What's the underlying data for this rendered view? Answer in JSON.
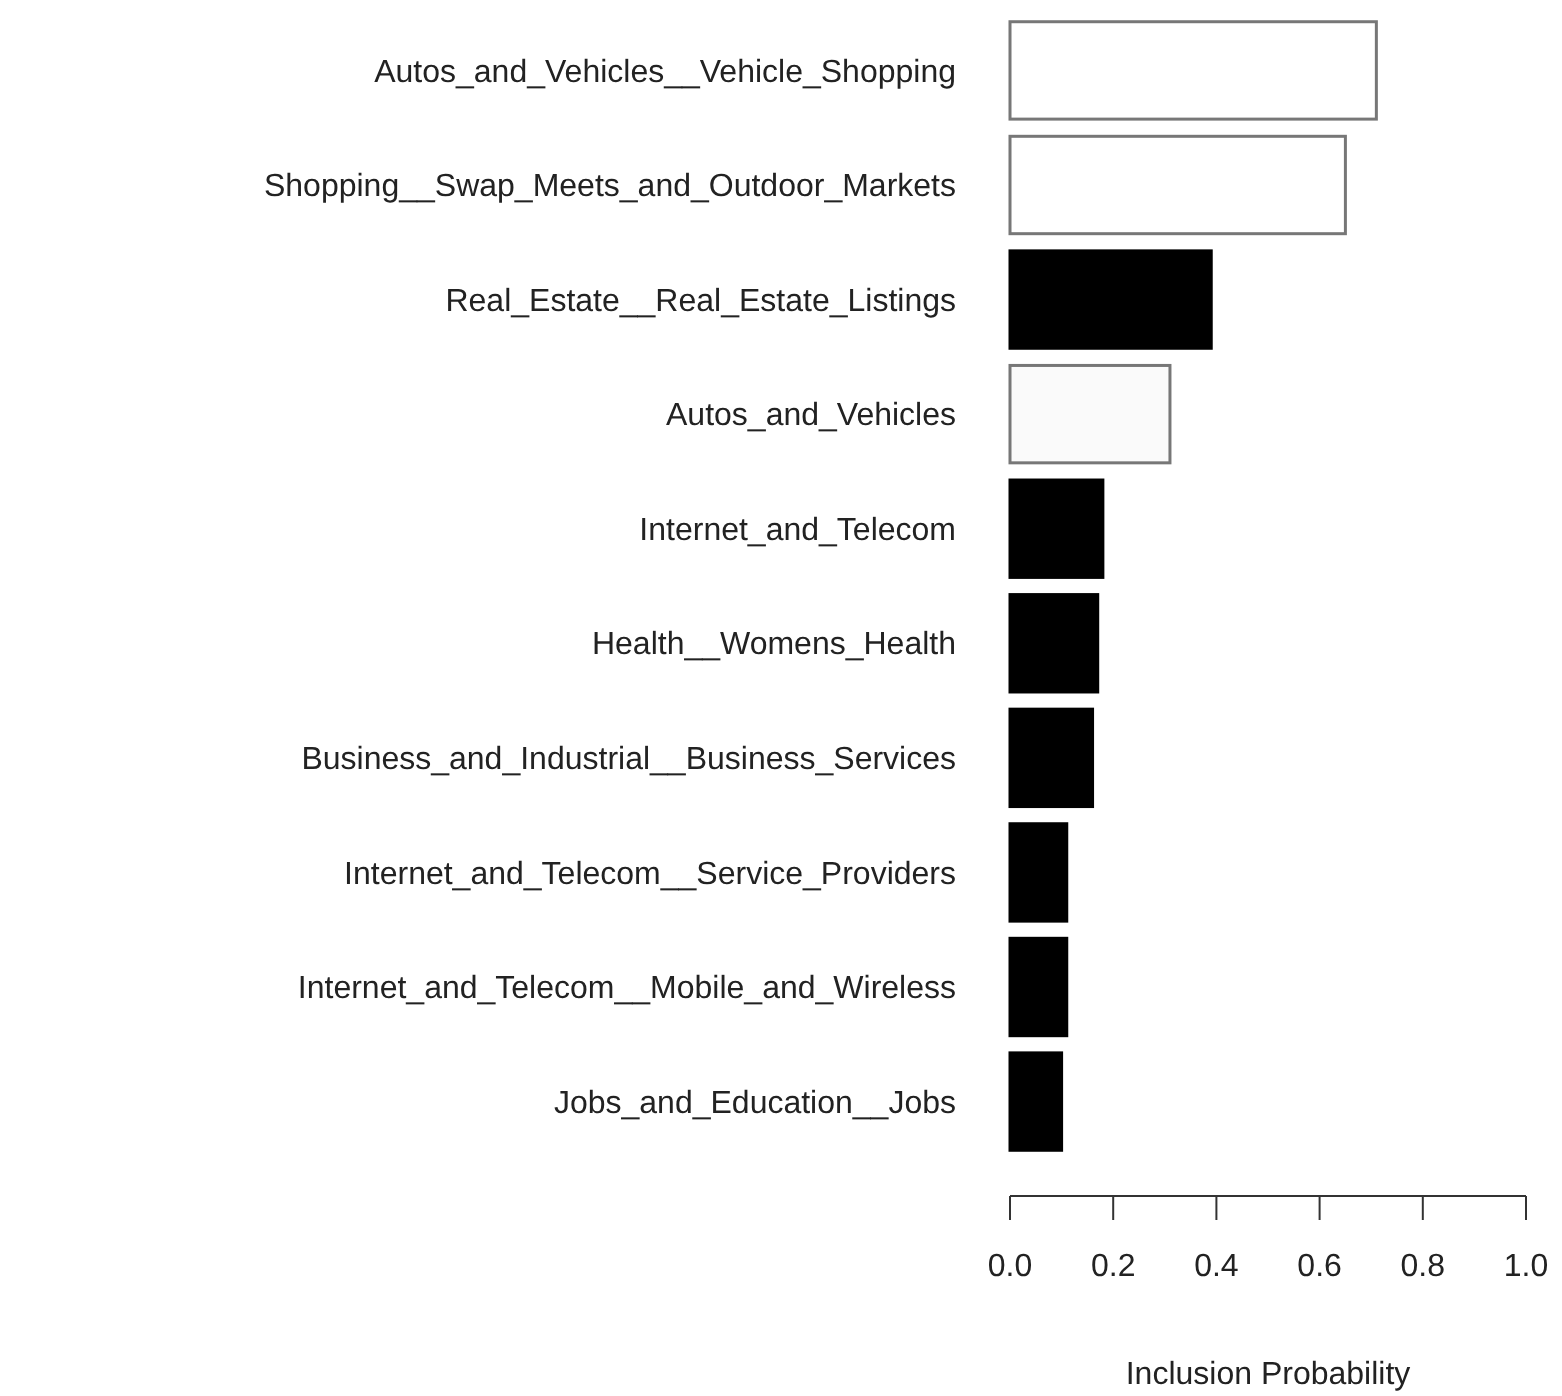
{
  "chart_data": {
    "type": "bar",
    "orientation": "horizontal",
    "xlabel": "Inclusion Probability",
    "categories": [
      "Autos_and_Vehicles__Vehicle_Shopping",
      "Shopping__Swap_Meets_and_Outdoor_Markets",
      "Real_Estate__Real_Estate_Listings",
      "Autos_and_Vehicles",
      "Internet_and_Telecom",
      "Health__Womens_Health",
      "Business_and_Industrial__Business_Services",
      "Internet_and_Telecom__Service_Providers",
      "Internet_and_Telecom__Mobile_and_Wireless",
      "Jobs_and_Education__Jobs"
    ],
    "values": [
      0.71,
      0.65,
      0.39,
      0.31,
      0.18,
      0.17,
      0.16,
      0.11,
      0.11,
      0.1
    ],
    "colors": [
      "#ffffff",
      "#ffffff",
      "#000000",
      "#fafafa",
      "#000000",
      "#000000",
      "#000000",
      "#000000",
      "#000000",
      "#000000"
    ],
    "xlim": [
      0,
      1
    ],
    "xticks": [
      {
        "value": 0,
        "label": "0.0"
      },
      {
        "value": 0.2,
        "label": "0.2"
      },
      {
        "value": 0.4,
        "label": "0.4"
      },
      {
        "value": 0.6,
        "label": "0.6"
      },
      {
        "value": 0.8,
        "label": "0.8"
      },
      {
        "value": 1,
        "label": "1.0"
      }
    ]
  }
}
